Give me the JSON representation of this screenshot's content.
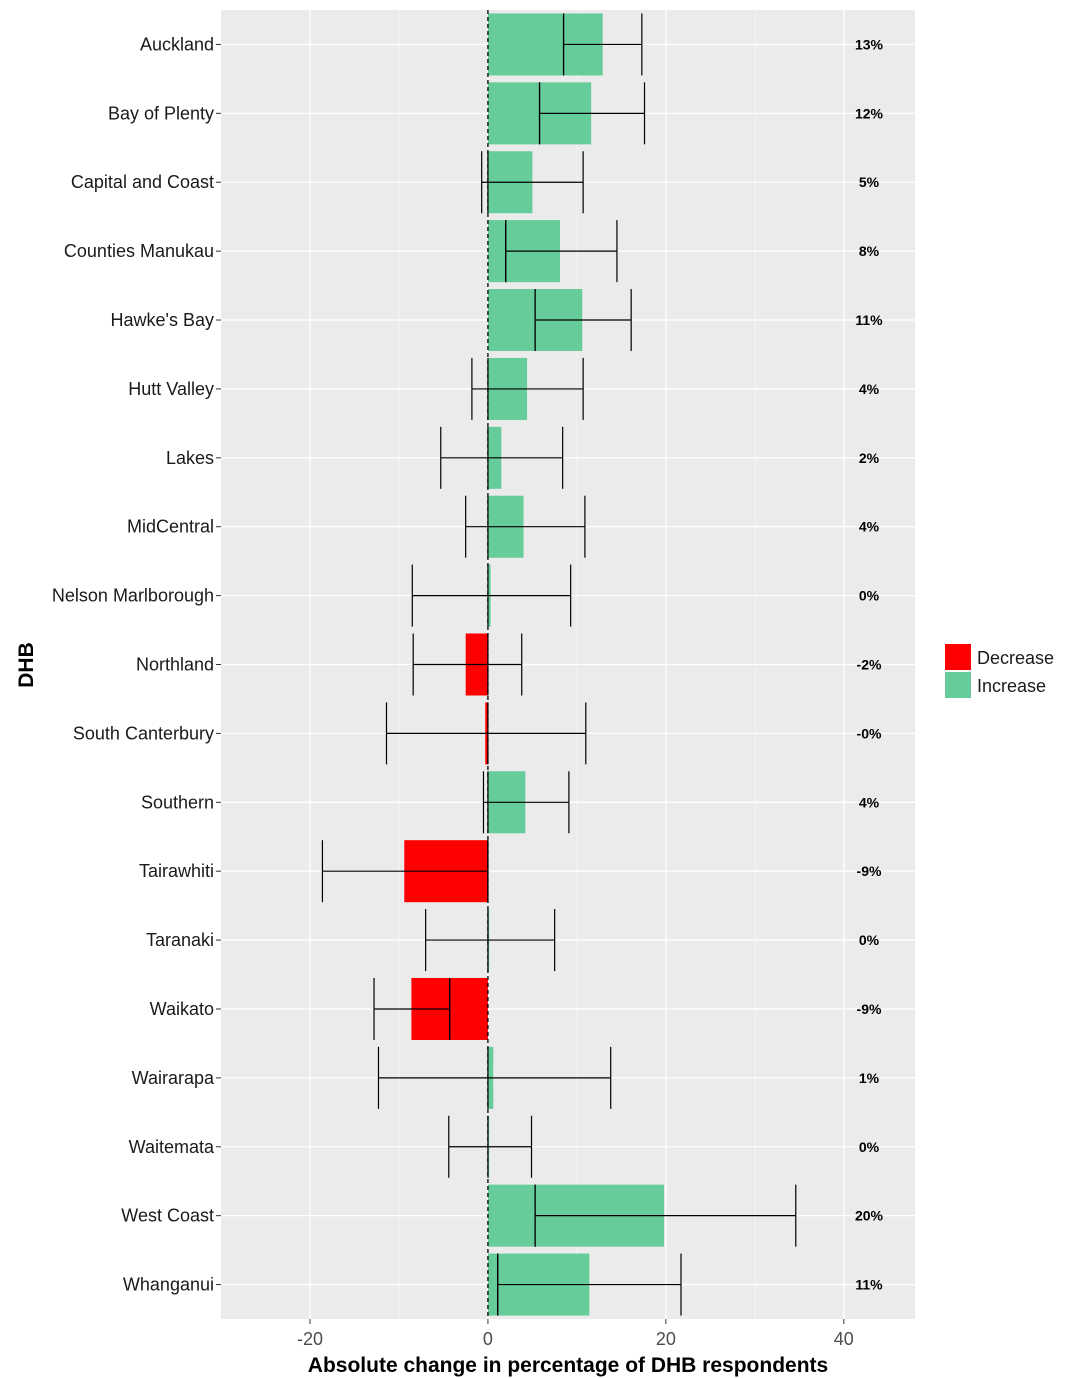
{
  "chart_data": {
    "type": "bar",
    "orientation": "horizontal",
    "xlabel": "Absolute change in percentage of DHB respondents",
    "ylabel": "DHB",
    "xlim": [
      -30,
      48
    ],
    "xticks": [
      "-20",
      "0",
      "20",
      "40"
    ],
    "xtick_values": [
      -20,
      0,
      20,
      40
    ],
    "grid": true,
    "reference_line": 0,
    "legend": {
      "position": "right",
      "items": [
        {
          "name": "Decrease",
          "color": "#ff0000"
        },
        {
          "name": "Increase",
          "color": "#66cc99"
        }
      ]
    },
    "categories": [
      "Auckland",
      "Bay of Plenty",
      "Capital and Coast",
      "Counties Manukau",
      "Hawke's Bay",
      "Hutt Valley",
      "Lakes",
      "MidCentral",
      "Nelson Marlborough",
      "Northland",
      "South Canterbury",
      "Southern",
      "Tairawhiti",
      "Taranaki",
      "Waikato",
      "Wairarapa",
      "Waitemata",
      "West Coast",
      "Whanganui"
    ],
    "values": [
      12.9,
      11.6,
      5.0,
      8.1,
      10.6,
      4.4,
      1.5,
      4.0,
      0.3,
      -2.5,
      -0.3,
      4.2,
      -9.4,
      0.0,
      -8.6,
      0.6,
      0.0,
      19.8,
      11.4
    ],
    "groups": [
      "Increase",
      "Increase",
      "Increase",
      "Increase",
      "Increase",
      "Increase",
      "Increase",
      "Increase",
      "Increase",
      "Decrease",
      "Decrease",
      "Increase",
      "Decrease",
      "Increase",
      "Decrease",
      "Increase",
      "Increase",
      "Increase",
      "Increase"
    ],
    "error_bars": [
      {
        "center": 8.5,
        "low": 8.5,
        "high": 17.3
      },
      {
        "center": 5.8,
        "low": 5.8,
        "high": 17.6
      },
      {
        "center": 0.0,
        "low": -0.7,
        "high": 10.7
      },
      {
        "center": 2.0,
        "low": 2.0,
        "high": 14.5
      },
      {
        "center": 5.3,
        "low": 5.3,
        "high": 16.1
      },
      {
        "center": 0.0,
        "low": -1.8,
        "high": 10.7
      },
      {
        "center": 0.0,
        "low": -5.3,
        "high": 8.4
      },
      {
        "center": 0.0,
        "low": -2.5,
        "high": 10.9
      },
      {
        "center": 0.0,
        "low": -8.5,
        "high": 9.3
      },
      {
        "center": 0.0,
        "low": -8.4,
        "high": 3.8
      },
      {
        "center": 0.0,
        "low": -11.4,
        "high": 11.0
      },
      {
        "center": 0.0,
        "low": -0.5,
        "high": 9.1
      },
      {
        "center": 0.0,
        "low": -18.6,
        "high": 0.0
      },
      {
        "center": 0.0,
        "low": -7.0,
        "high": 7.5
      },
      {
        "center": -4.3,
        "low": -12.8,
        "high": -4.3
      },
      {
        "center": 0.0,
        "low": -12.3,
        "high": 13.8
      },
      {
        "center": 0.0,
        "low": -4.4,
        "high": 4.9
      },
      {
        "center": 5.3,
        "low": 5.3,
        "high": 34.6
      },
      {
        "center": 1.1,
        "low": 1.1,
        "high": 21.7
      }
    ],
    "value_labels": [
      "13%",
      "12%",
      "5%",
      "8%",
      "11%",
      "4%",
      "2%",
      "4%",
      "0%",
      "-2%",
      "-0%",
      "4%",
      "-9%",
      "0%",
      "-9%",
      "1%",
      "0%",
      "20%",
      "11%"
    ]
  }
}
